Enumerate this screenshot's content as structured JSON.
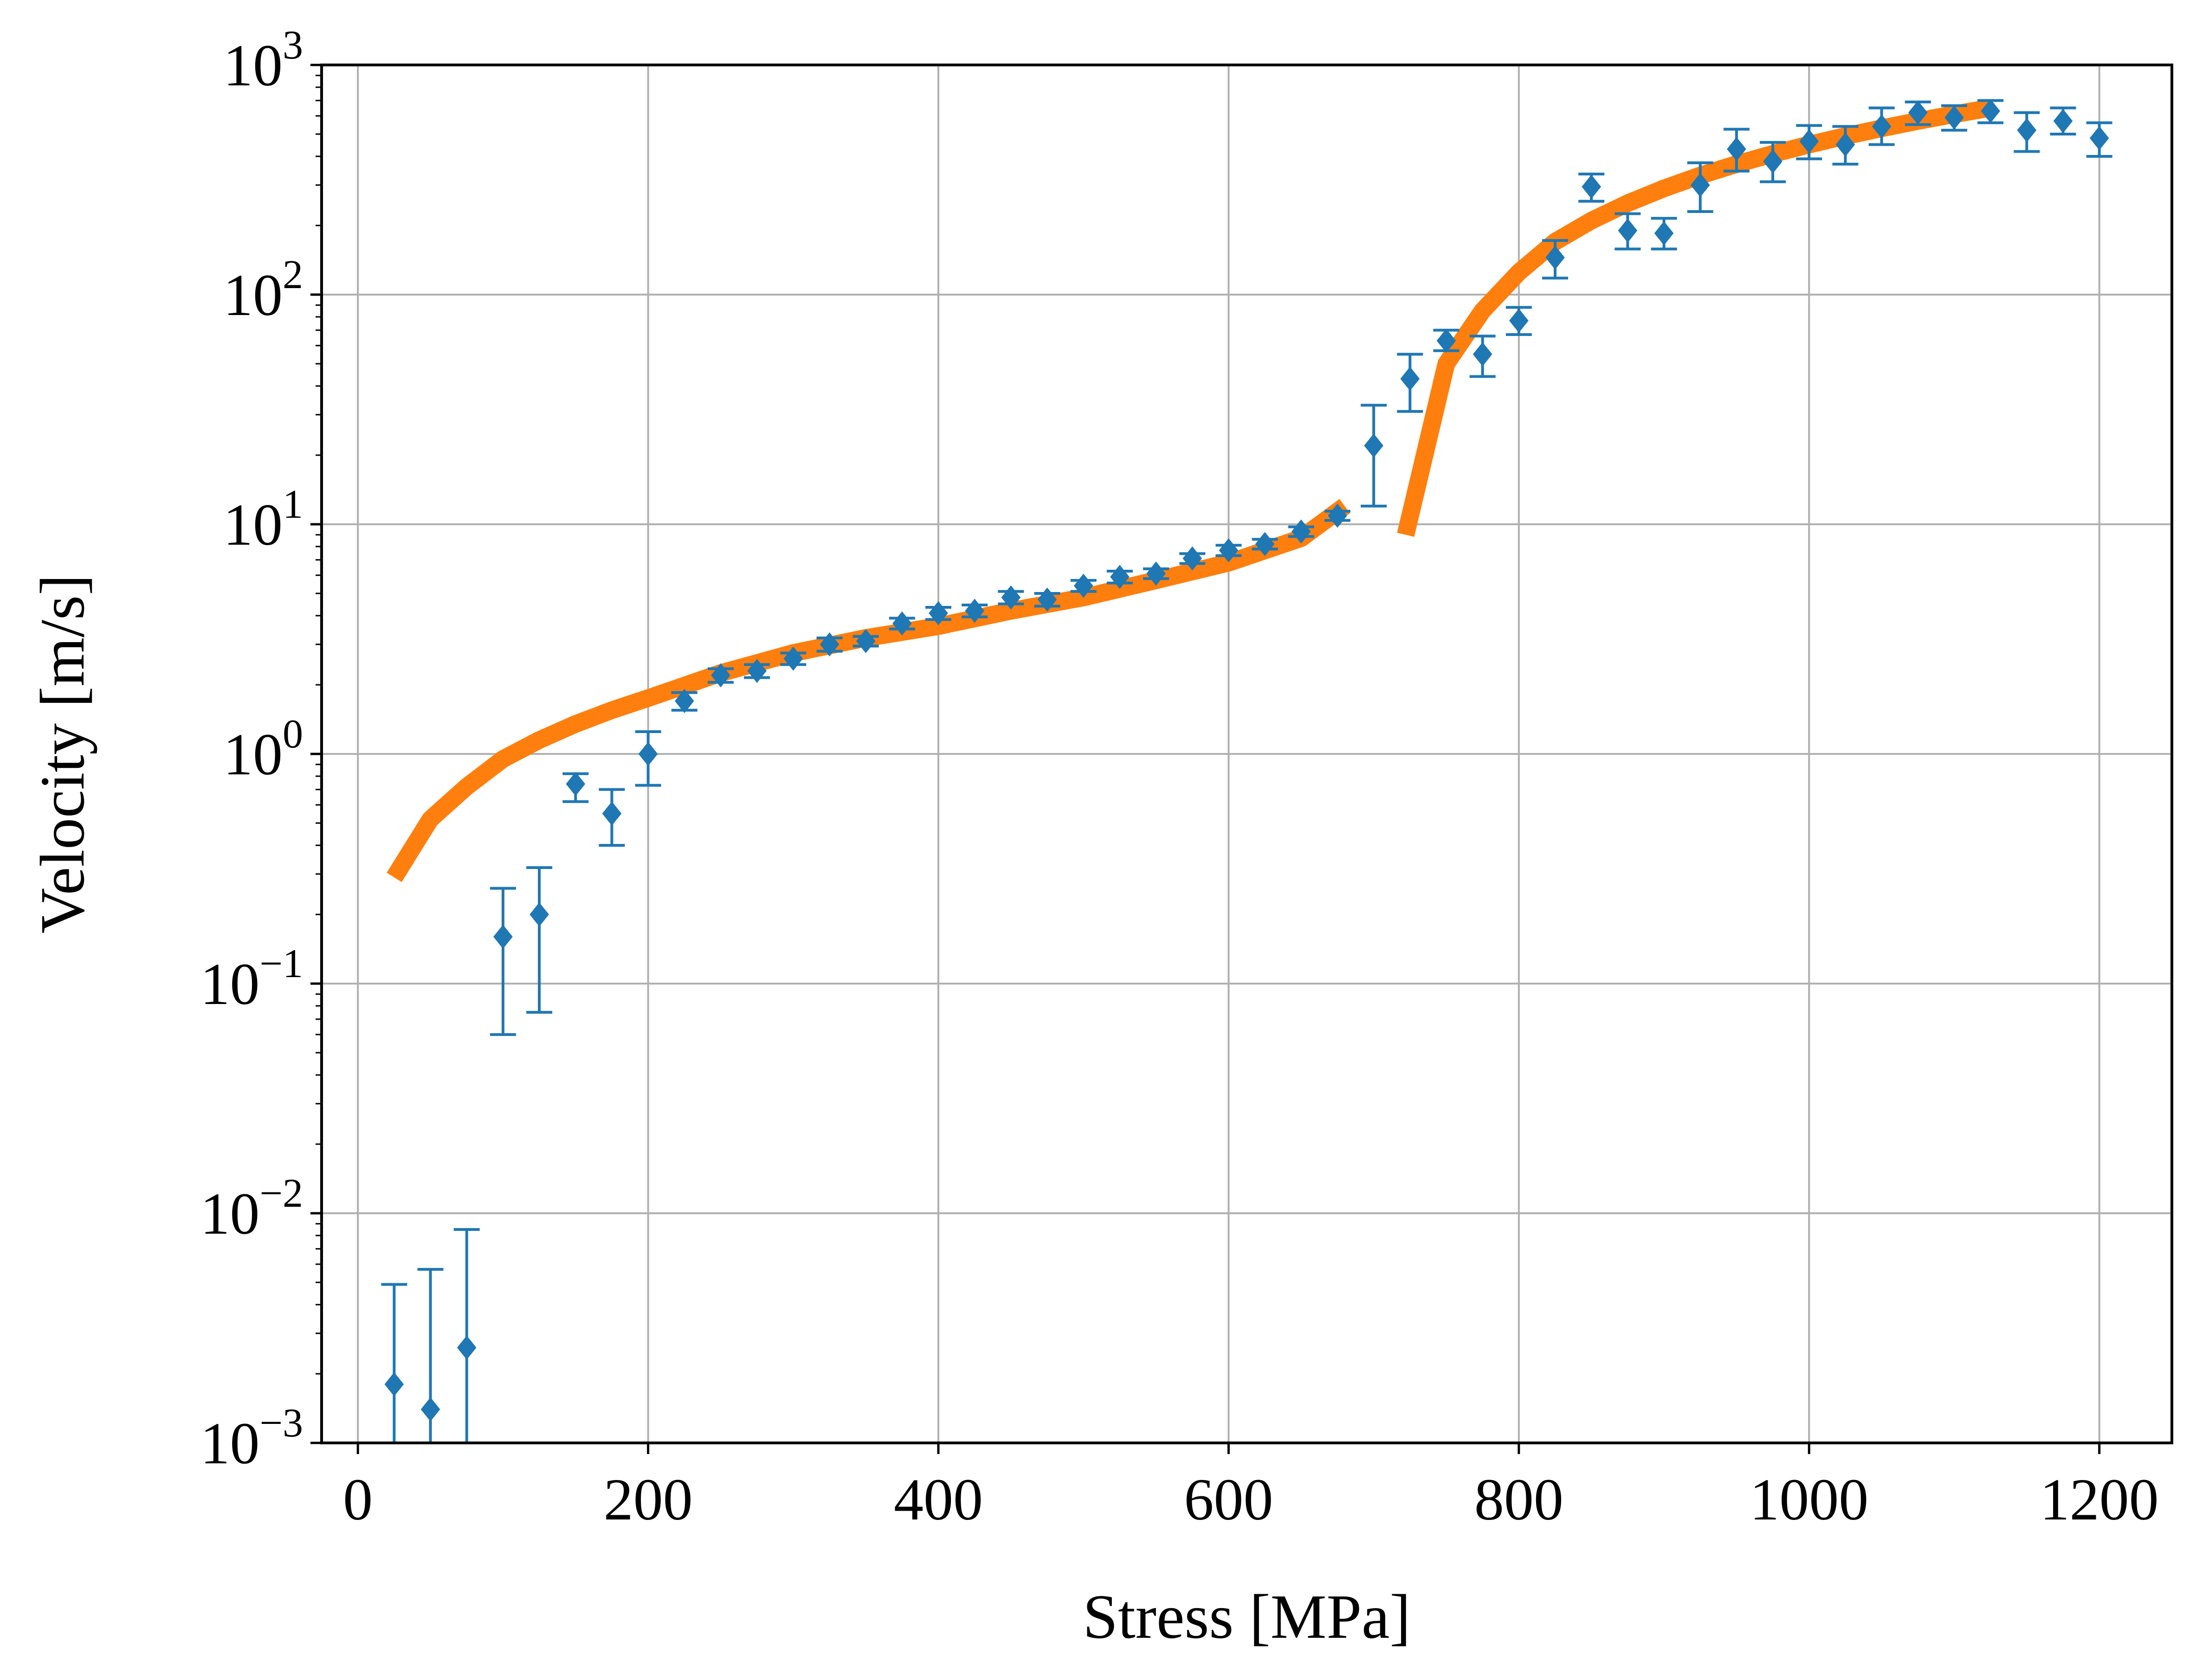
{
  "chart_data": {
    "type": "scatter",
    "xlabel": "Stress [MPa]",
    "ylabel": "Velocity [m/s]",
    "xlim": [
      -25,
      1250
    ],
    "ylim": [
      0.001,
      1000
    ],
    "yscale": "log",
    "grid": true,
    "x_ticks": [
      "0",
      "200",
      "400",
      "600",
      "800",
      "1000",
      "1200"
    ],
    "y_ticks": [
      {
        "base": "10",
        "exp": "−3"
      },
      {
        "base": "10",
        "exp": "−2"
      },
      {
        "base": "10",
        "exp": "−1"
      },
      {
        "base": "10",
        "exp": "0"
      },
      {
        "base": "10",
        "exp": "1"
      },
      {
        "base": "10",
        "exp": "2"
      },
      {
        "base": "10",
        "exp": "3"
      }
    ],
    "x_tick_values": [
      0,
      200,
      400,
      600,
      800,
      1000,
      1200
    ],
    "y_tick_values": [
      0.001,
      0.01,
      0.1,
      1,
      10,
      100,
      1000
    ],
    "series": [
      {
        "kind": "errorbar",
        "color": "#1f77b4",
        "marker": "diamond",
        "x": [
          25,
          50,
          75,
          100,
          125,
          150,
          175,
          200,
          225,
          250,
          275,
          300,
          325,
          350,
          375,
          400,
          425,
          450,
          475,
          500,
          525,
          550,
          575,
          600,
          625,
          650,
          675,
          700,
          725,
          750,
          775,
          800,
          825,
          850,
          875,
          900,
          925,
          950,
          975,
          1000,
          1025,
          1050,
          1075,
          1100,
          1125,
          1150,
          1175,
          1200
        ],
        "y": [
          0.0018,
          0.0014,
          0.0026,
          0.16,
          0.2,
          0.74,
          0.55,
          1.0,
          1.7,
          2.2,
          2.3,
          2.6,
          3.0,
          3.1,
          3.7,
          4.1,
          4.2,
          4.8,
          4.7,
          5.4,
          5.9,
          6.1,
          7.1,
          7.7,
          8.2,
          9.3,
          10.9,
          22,
          43,
          63,
          55,
          77,
          145,
          295,
          190,
          185,
          300,
          430,
          380,
          465,
          450,
          540,
          620,
          590,
          630,
          520,
          570,
          480
        ],
        "err_low": [
          0.0008,
          0.0008,
          0.0008,
          0.06,
          0.075,
          0.62,
          0.4,
          0.73,
          1.55,
          2.05,
          2.15,
          2.45,
          2.8,
          2.95,
          3.5,
          3.85,
          3.95,
          4.5,
          4.4,
          5.1,
          5.55,
          5.8,
          6.75,
          7.3,
          7.8,
          8.85,
          10.4,
          12,
          31,
          57,
          44,
          67,
          118,
          255,
          158,
          158,
          230,
          345,
          310,
          390,
          370,
          450,
          550,
          520,
          560,
          420,
          500,
          400
        ],
        "err_high": [
          0.0049,
          0.0057,
          0.0085,
          0.26,
          0.32,
          0.82,
          0.7,
          1.25,
          1.85,
          2.35,
          2.45,
          2.75,
          3.2,
          3.25,
          3.9,
          4.35,
          4.45,
          5.1,
          5.0,
          5.7,
          6.25,
          6.4,
          7.45,
          8.1,
          8.6,
          9.75,
          11.4,
          33,
          55,
          70,
          66,
          88,
          172,
          335,
          225,
          215,
          375,
          525,
          460,
          545,
          540,
          650,
          690,
          665,
          700,
          620,
          650,
          560
        ]
      },
      {
        "kind": "line",
        "color": "#ff7f0e",
        "x": [
          25,
          50,
          75,
          100,
          125,
          150,
          175,
          200,
          250,
          300,
          350,
          400,
          450,
          500,
          550,
          600,
          650,
          680
        ],
        "y": [
          0.29,
          0.52,
          0.72,
          0.95,
          1.15,
          1.35,
          1.55,
          1.75,
          2.25,
          2.75,
          3.2,
          3.6,
          4.2,
          4.8,
          5.7,
          6.8,
          8.7,
          12.0
        ]
      },
      {
        "kind": "line",
        "color": "#ff7f0e",
        "x": [
          722,
          750,
          775,
          800,
          825,
          850,
          875,
          900,
          925,
          950,
          975,
          1000,
          1025,
          1050,
          1075,
          1100,
          1125
        ],
        "y": [
          9.0,
          50,
          85,
          125,
          170,
          210,
          250,
          290,
          330,
          370,
          410,
          450,
          490,
          530,
          570,
          610,
          650
        ]
      }
    ]
  }
}
